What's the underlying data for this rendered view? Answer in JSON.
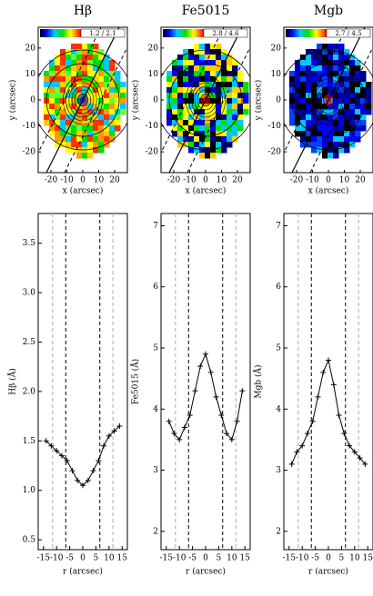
{
  "chart_data": [
    {
      "type": "map",
      "title": "Hβ",
      "colorbar_label": "1.2 / 2.1",
      "xlabel": "x (arcsec)",
      "ylabel": "y (arcsec)",
      "xlim": [
        -28,
        28
      ],
      "ylim": [
        -28,
        28
      ],
      "xticks": [
        -20,
        -10,
        0,
        10,
        20
      ],
      "yticks": [
        -20,
        -10,
        0,
        10,
        20
      ]
    },
    {
      "type": "map",
      "title": "Fe5015",
      "colorbar_label": "2.8 / 4.6",
      "xlabel": "x (arcsec)",
      "ylabel": "y (arcsec)",
      "xlim": [
        -28,
        28
      ],
      "ylim": [
        -28,
        28
      ],
      "xticks": [
        -20,
        -10,
        0,
        10,
        20
      ],
      "yticks": [
        -20,
        -10,
        0,
        10,
        20
      ]
    },
    {
      "type": "map",
      "title": "Mgb",
      "colorbar_label": "2.7 / 4.5",
      "xlabel": "x (arcsec)",
      "ylabel": "y (arcsec)",
      "xlim": [
        -28,
        28
      ],
      "ylim": [
        -28,
        28
      ],
      "xticks": [
        -20,
        -10,
        0,
        10,
        20
      ],
      "yticks": [
        -20,
        -10,
        0,
        10,
        20
      ]
    },
    {
      "type": "line",
      "ylabel": "Hβ (Å)",
      "xlabel": "r (arcsec)",
      "color": "#000000",
      "x": [
        -14,
        -12,
        -10,
        -8,
        -6,
        -4,
        -2,
        0,
        2,
        4,
        6,
        8,
        10,
        12,
        14
      ],
      "values": [
        1.5,
        1.45,
        1.4,
        1.35,
        1.3,
        1.2,
        1.1,
        1.05,
        1.1,
        1.2,
        1.3,
        1.45,
        1.55,
        1.6,
        1.65
      ],
      "xlim": [
        -17,
        17
      ],
      "xticks": [
        -15,
        -10,
        -5,
        0,
        5,
        10,
        15
      ],
      "ylim": [
        0.4,
        3.8
      ],
      "yticks": [
        0.5,
        {
          "value": 1,
          "label": "1.0"
        },
        1.5,
        {
          "value": 2,
          "label": "2.0"
        },
        2.5,
        {
          "value": 3,
          "label": "3.0"
        },
        3.5
      ],
      "inner_lines": [
        -6.5,
        6.5
      ],
      "outer_lines": [
        -11.5,
        11.5
      ]
    },
    {
      "type": "line",
      "ylabel": "Fe5015 (Å)",
      "xlabel": "r (arcsec)",
      "color": "#000000",
      "x": [
        -14,
        -12,
        -10,
        -8,
        -6,
        -4,
        -2,
        0,
        2,
        4,
        6,
        8,
        10,
        12,
        14
      ],
      "values": [
        3.8,
        3.6,
        3.5,
        3.7,
        3.9,
        4.3,
        4.7,
        4.9,
        4.6,
        4.2,
        3.9,
        3.6,
        3.5,
        3.8,
        4.3
      ],
      "xlim": [
        -17,
        17
      ],
      "xticks": [
        -15,
        -10,
        -5,
        0,
        5,
        10,
        15
      ],
      "ylim": [
        1.7,
        7.2
      ],
      "yticks": [
        2,
        3,
        4,
        5,
        6,
        7
      ],
      "inner_lines": [
        -6.5,
        6.5
      ],
      "outer_lines": [
        -11.5,
        11.5
      ]
    },
    {
      "type": "line",
      "ylabel": "Mgb (Å)",
      "xlabel": "r (arcsec)",
      "color": "#000000",
      "x": [
        -14,
        -12,
        -10,
        -8,
        -6,
        -4,
        -2,
        0,
        2,
        4,
        6,
        8,
        10,
        12,
        14
      ],
      "values": [
        3.1,
        3.3,
        3.4,
        3.6,
        3.8,
        4.2,
        4.6,
        4.8,
        4.4,
        3.9,
        3.6,
        3.4,
        3.3,
        3.2,
        3.1
      ],
      "xlim": [
        -17,
        17
      ],
      "xticks": [
        -15,
        -10,
        -5,
        0,
        5,
        10,
        15
      ],
      "ylim": [
        1.7,
        7.2
      ],
      "yticks": [
        2,
        3,
        4,
        5,
        6,
        7
      ],
      "inner_lines": [
        -6.5,
        6.5
      ],
      "outer_lines": [
        -11.5,
        11.5
      ]
    }
  ]
}
